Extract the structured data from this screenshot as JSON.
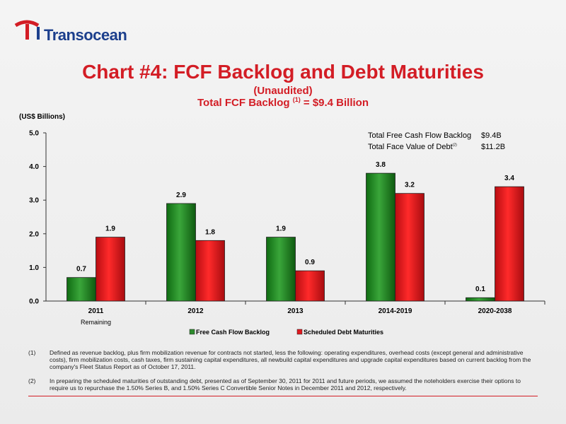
{
  "header": {
    "logo_text": "Transocean",
    "title": "Chart #4: FCF Backlog and Debt Maturities",
    "subtitle": "(Unaudited)",
    "subtitle2_pre": "Total FCF Backlog ",
    "subtitle2_sup": "(1)",
    "subtitle2_post": " = $9.4 Billion"
  },
  "units_label": "(US$ Billions)",
  "summary": {
    "row1_label": "Total Free Cash Flow Backlog",
    "row1_value": "$9.4B",
    "row2_label": "Total Face Value of Debt",
    "row2_sup": "(2)",
    "row2_value": "$11.2B"
  },
  "chart_data": {
    "type": "bar",
    "categories": [
      "2011",
      "2012",
      "2013",
      "2014-2019",
      "2020-2038"
    ],
    "category_sublabels": [
      "Remaining",
      "",
      "",
      "",
      ""
    ],
    "series": [
      {
        "name": "Free Cash Flow Backlog",
        "values": [
          0.7,
          2.9,
          1.9,
          3.8,
          0.1
        ],
        "labels": [
          "0.7",
          "2.9",
          "1.9",
          "3.8",
          "0.1"
        ],
        "color": "#2e8b2e"
      },
      {
        "name": "Scheduled Debt Maturities",
        "values": [
          1.9,
          1.8,
          0.9,
          3.2,
          3.4
        ],
        "labels": [
          "1.9",
          "1.8",
          "0.9",
          "3.2",
          "3.4"
        ],
        "color": "#e0191f"
      }
    ],
    "ylim": [
      0,
      5
    ],
    "yticks": [
      "0.0",
      "1.0",
      "2.0",
      "3.0",
      "4.0",
      "5.0"
    ],
    "legend": "bottom"
  },
  "notes": [
    {
      "num": "(1)",
      "text": "Defined as revenue backlog, plus firm mobilization revenue for contracts not started, less the following:  operating expenditures, overhead costs (except general and administrative costs), firm mobilization costs, cash taxes, firm sustaining capital expenditures, all newbuild capital expenditures and upgrade capital expenditures based on current backlog from the company's Fleet Status Report as of October 17, 2011."
    },
    {
      "num": "(2)",
      "text": "In preparing the scheduled maturities of outstanding debt, presented as of  September 30, 2011 for 2011 and future periods, we assumed the noteholders exercise their options to require us to repurchase the 1.50% Series B, and 1.50% Series C Convertible Senior Notes in December 2011 and 2012, respectively."
    }
  ]
}
